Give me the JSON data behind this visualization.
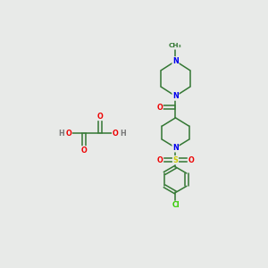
{
  "background_color": "#e8eae8",
  "fig_width": 3.0,
  "fig_height": 3.0,
  "dpi": 100,
  "colors": {
    "N": "#0000ee",
    "O": "#ee0000",
    "S": "#cccc00",
    "Cl": "#33cc00",
    "H": "#777777",
    "bond": "#337733"
  },
  "lw": 1.1,
  "fs": 5.8
}
